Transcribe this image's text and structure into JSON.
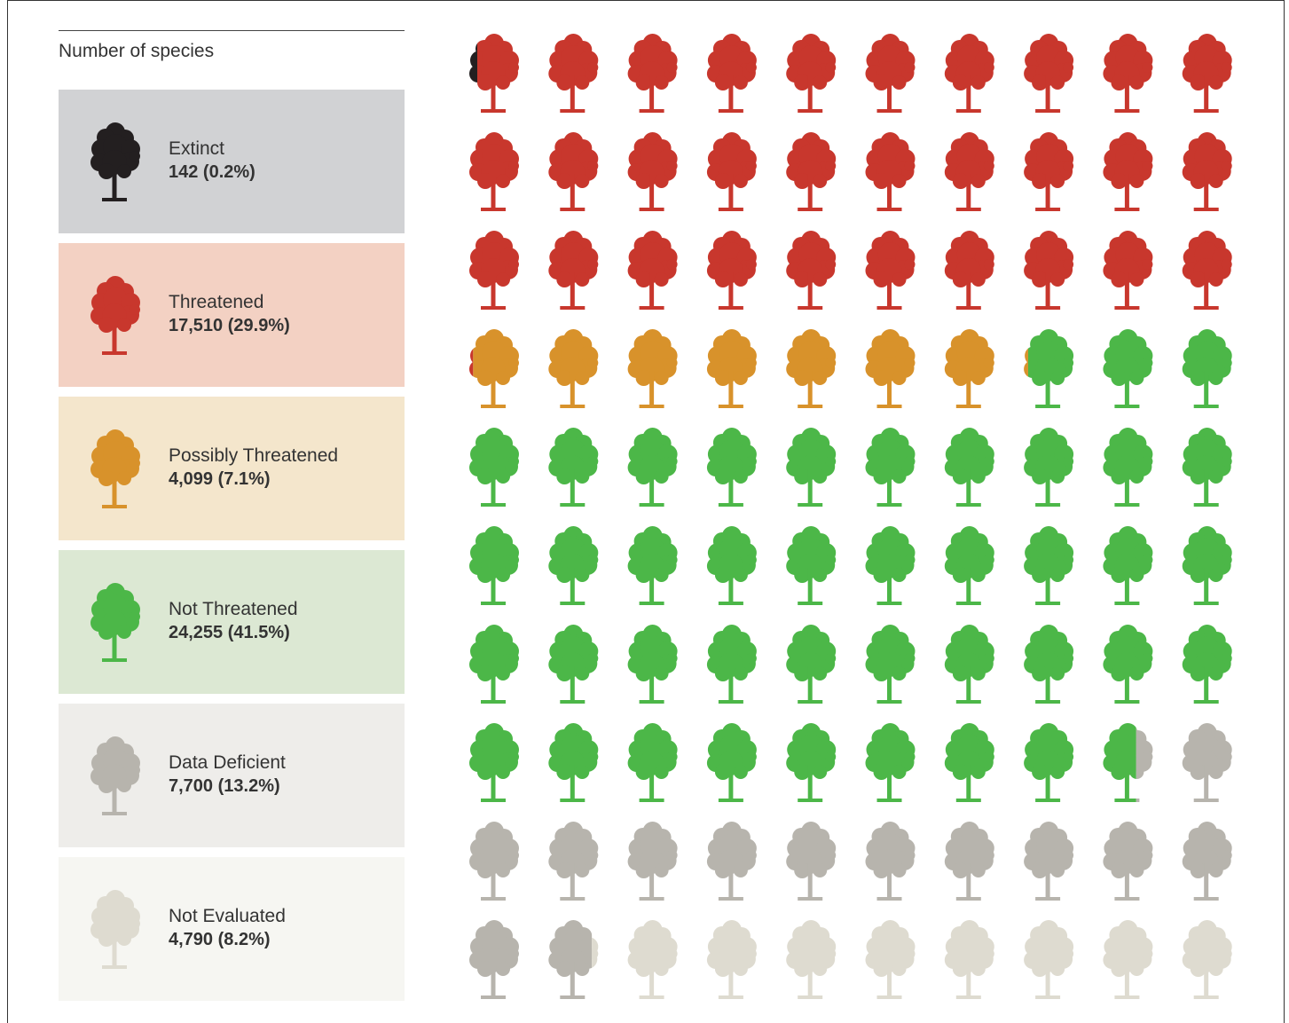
{
  "chart_data": {
    "type": "waffle",
    "title": "Number of species",
    "icons": 100,
    "columns": 10,
    "series": [
      {
        "name": "Extinct",
        "color": "#231f20",
        "values": [
          142
        ],
        "value_labels": [
          "142 (0.2%)"
        ]
      },
      {
        "name": "Threatened",
        "color": "#c8372d",
        "values": [
          17510
        ],
        "value_labels": [
          "17,510 (29.9%)"
        ]
      },
      {
        "name": "Possibly Threatened",
        "color": "#d8922b",
        "values": [
          4099
        ],
        "value_labels": [
          "4,099 (7.1%)"
        ]
      },
      {
        "name": "Not Threatened",
        "color": "#4cb748",
        "values": [
          24255
        ],
        "value_labels": [
          "24,255 (41.5%)"
        ]
      },
      {
        "name": "Data Deficient",
        "color": "#b7b4ad",
        "values": [
          7700
        ],
        "value_labels": [
          "7,700 (13.2%)"
        ]
      },
      {
        "name": "Not Evaluated",
        "color": "#dedbd0",
        "values": [
          4790
        ],
        "value_labels": [
          "4,790 (8.2%)"
        ]
      }
    ]
  }
}
